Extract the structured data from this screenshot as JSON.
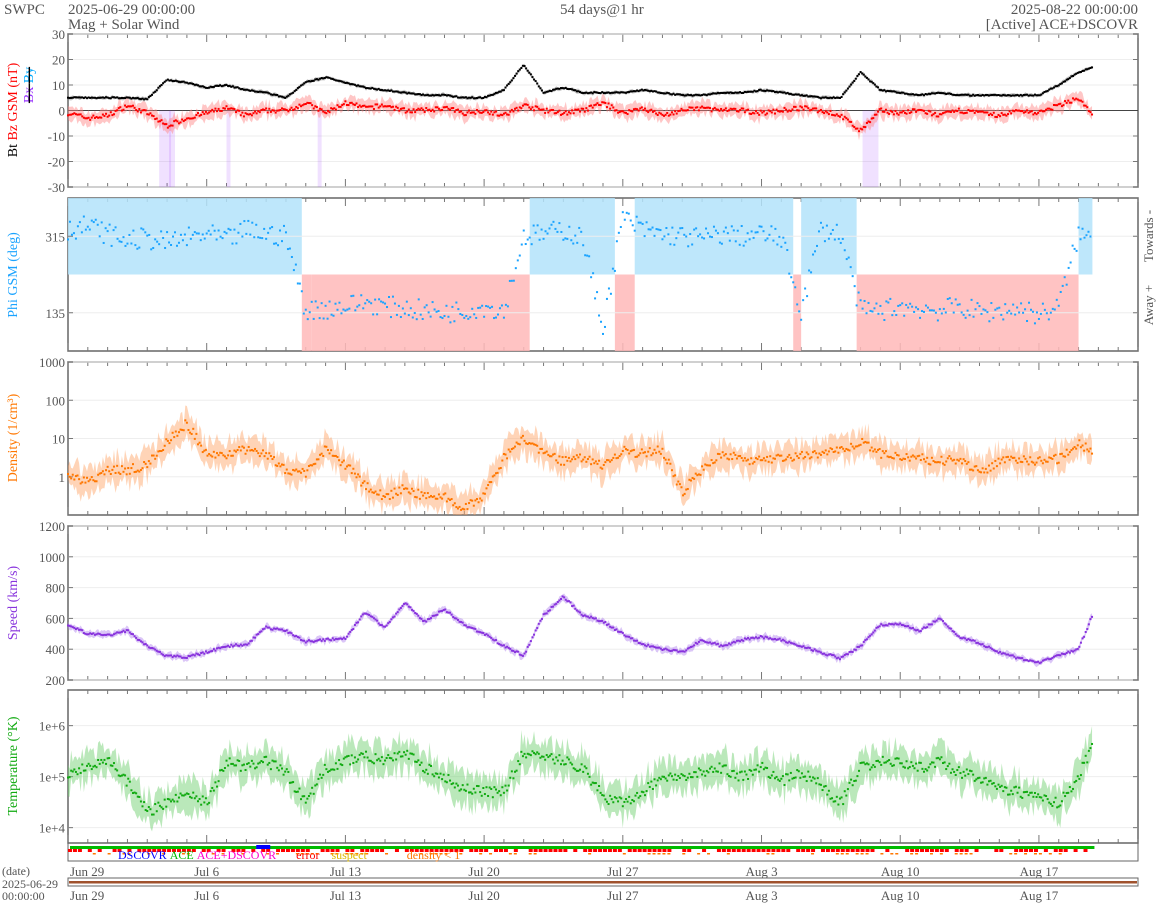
{
  "header": {
    "org": "SWPC",
    "start": "2025-06-29 00:00:00",
    "subtitle": "Mag + Solar Wind",
    "span": "54 days@1 hr",
    "end": "2025-08-22 00:00:00",
    "source": "[Active] ACE+DSCOVR"
  },
  "colors": {
    "bt": "#000000",
    "bz": "#ff0000",
    "bx": "#9933ff",
    "by": "#00aaff",
    "phi": "#1aa3ff",
    "density": "#ff7700",
    "speed": "#8833dd",
    "temp": "#11aa11"
  },
  "chart_data": {
    "type": "line",
    "x_unit": "days since 2025-06-29 00:00",
    "xlim": [
      0,
      54
    ],
    "x_ticks": [
      {
        "day": 0,
        "label": "Jun 29"
      },
      {
        "day": 7,
        "label": "Jul 6"
      },
      {
        "day": 14,
        "label": "Jul 13"
      },
      {
        "day": 21,
        "label": "Jul 20"
      },
      {
        "day": 28,
        "label": "Jul 27"
      },
      {
        "day": 35,
        "label": "Aug 3"
      },
      {
        "day": 42,
        "label": "Aug 10"
      },
      {
        "day": 49,
        "label": "Aug 17"
      }
    ],
    "days": [
      0,
      1,
      2,
      3,
      4,
      5,
      6,
      7,
      8,
      9,
      10,
      11,
      12,
      13,
      14,
      15,
      16,
      17,
      18,
      19,
      20,
      21,
      22,
      23,
      24,
      25,
      26,
      27,
      28,
      29,
      30,
      31,
      32,
      33,
      34,
      35,
      36,
      37,
      38,
      39,
      40,
      41,
      42,
      43,
      44,
      45,
      46,
      47,
      48,
      49,
      50,
      51,
      51.7
    ],
    "panels": {
      "mag": {
        "ylabel_parts": [
          "Bt",
          "Bz GSM (nT)",
          "Bx",
          "By"
        ],
        "ylim": [
          -30,
          30
        ],
        "yticks": [
          -30,
          -20,
          -10,
          0,
          10,
          20,
          30
        ],
        "series": [
          {
            "name": "Bt",
            "values": [
              5,
              5,
              5,
              5,
              4.5,
              12,
              11,
              9,
              10,
              8,
              7,
              5,
              11,
              13,
              11,
              9,
              8,
              7,
              6,
              6,
              5,
              5,
              8,
              18,
              7,
              9,
              7,
              7,
              7,
              8,
              7,
              6,
              6,
              7,
              7,
              8,
              7,
              6,
              5,
              5,
              15,
              8,
              7,
              6,
              7,
              6,
              6,
              6,
              6,
              6,
              10,
              15,
              17
            ]
          },
          {
            "name": "Bz GSM",
            "values": [
              -1,
              -3,
              -2,
              2,
              -1,
              -6,
              -3,
              -1,
              1,
              -2,
              0,
              0,
              3,
              -1,
              3,
              1,
              2,
              0,
              0,
              1,
              -1,
              0,
              -2,
              2,
              0,
              -1,
              0,
              3,
              -1,
              1,
              -2,
              0,
              1,
              0,
              0,
              -1,
              0,
              1,
              0,
              -2,
              -8,
              0,
              -1,
              0,
              -2,
              0,
              -1,
              -2,
              0,
              -1,
              2,
              5,
              -2
            ]
          }
        ]
      },
      "phi": {
        "ylabel": "Phi GSM (deg)",
        "ylim": [
          45,
          405
        ],
        "yticks": [
          135,
          315
        ],
        "right_labels": {
          "towards": "Towards -",
          "away": "Away +"
        },
        "sectors": [
          [
            0,
            11.8,
            "towards"
          ],
          [
            11.8,
            12.3,
            "away"
          ],
          [
            12.3,
            23.3,
            "away"
          ],
          [
            23.3,
            27.6,
            "towards"
          ],
          [
            27.6,
            28.6,
            "away"
          ],
          [
            28.6,
            36.6,
            "towards"
          ],
          [
            36.6,
            37,
            "away"
          ],
          [
            37,
            39.8,
            "towards"
          ],
          [
            39.8,
            51,
            "away"
          ],
          [
            51,
            51.7,
            "towards"
          ]
        ],
        "values": [
          330,
          340,
          320,
          305,
          310,
          300,
          310,
          320,
          305,
          330,
          320,
          315,
          140,
          145,
          150,
          160,
          150,
          145,
          140,
          135,
          140,
          150,
          140,
          315,
          320,
          330,
          310,
          100,
          360,
          330,
          320,
          315,
          310,
          320,
          315,
          320,
          310,
          140,
          330,
          320,
          140,
          140,
          150,
          145,
          140,
          150,
          135,
          140,
          145,
          130,
          150,
          320,
          310
        ]
      },
      "density": {
        "ylabel": "Density (1/cm³)",
        "scale": "log",
        "ylim": [
          0.1,
          1000
        ],
        "yticks": [
          {
            "v": 1,
            "label": "1"
          },
          {
            "v": 10,
            "label": "10"
          },
          {
            "v": 100,
            "label": "100"
          },
          {
            "v": 1000,
            "label": "1000"
          }
        ],
        "values": [
          1.2,
          0.7,
          1.5,
          1.5,
          2,
          8,
          25,
          4,
          4,
          5,
          4,
          1.5,
          1.3,
          5,
          2,
          0.6,
          0.3,
          0.5,
          0.3,
          0.3,
          0.15,
          0.3,
          3,
          10,
          4,
          2.5,
          3,
          2,
          5,
          4,
          5,
          0.4,
          1.5,
          4,
          3,
          2.5,
          3,
          3.5,
          4,
          5,
          8,
          4,
          3,
          3,
          2.5,
          3,
          1.3,
          2.5,
          3,
          2.5,
          3,
          7,
          5
        ]
      },
      "speed": {
        "ylabel": "Speed (km/s)",
        "ylim": [
          200,
          1200
        ],
        "yticks": [
          200,
          400,
          600,
          800,
          1000,
          1200
        ],
        "values": [
          560,
          500,
          490,
          520,
          420,
          355,
          350,
          380,
          420,
          430,
          540,
          520,
          450,
          460,
          470,
          640,
          540,
          700,
          580,
          660,
          560,
          500,
          420,
          360,
          620,
          740,
          620,
          580,
          500,
          430,
          400,
          380,
          460,
          420,
          460,
          480,
          460,
          420,
          380,
          340,
          420,
          560,
          560,
          520,
          600,
          480,
          440,
          380,
          340,
          310,
          360,
          400,
          620
        ]
      },
      "temperature": {
        "ylabel": "Temperature (°K)",
        "scale": "log",
        "ylim": [
          5000,
          5000000
        ],
        "yticks": [
          {
            "v": 10000,
            "label": "1e+4"
          },
          {
            "v": 100000,
            "label": "1e+5"
          },
          {
            "v": 1000000,
            "label": "1e+6"
          }
        ],
        "values": [
          120000,
          150000,
          200000,
          80000,
          20000,
          30000,
          50000,
          30000,
          200000,
          150000,
          200000,
          120000,
          30000,
          150000,
          200000,
          250000,
          200000,
          300000,
          150000,
          100000,
          60000,
          50000,
          50000,
          300000,
          250000,
          200000,
          150000,
          40000,
          30000,
          50000,
          100000,
          100000,
          120000,
          150000,
          100000,
          150000,
          80000,
          120000,
          70000,
          30000,
          150000,
          200000,
          180000,
          150000,
          200000,
          120000,
          100000,
          60000,
          50000,
          40000,
          30000,
          100000,
          400000
        ]
      }
    },
    "status_legend": [
      {
        "label": "DSCOVR",
        "color": "#0000ff"
      },
      {
        "label": "ACE",
        "color": "#00bb00"
      },
      {
        "label": "ACE+DSCOVR",
        "color": "#ff00cc"
      },
      {
        "label": "error",
        "color": "#ff0000"
      },
      {
        "label": "suspect",
        "color": "#ddbb00"
      },
      {
        "label": "density < 1",
        "color": "#ff7700"
      }
    ],
    "date_axis": {
      "label": "(date)",
      "start_date": "2025-06-29",
      "start_time": "00:00:00"
    }
  }
}
